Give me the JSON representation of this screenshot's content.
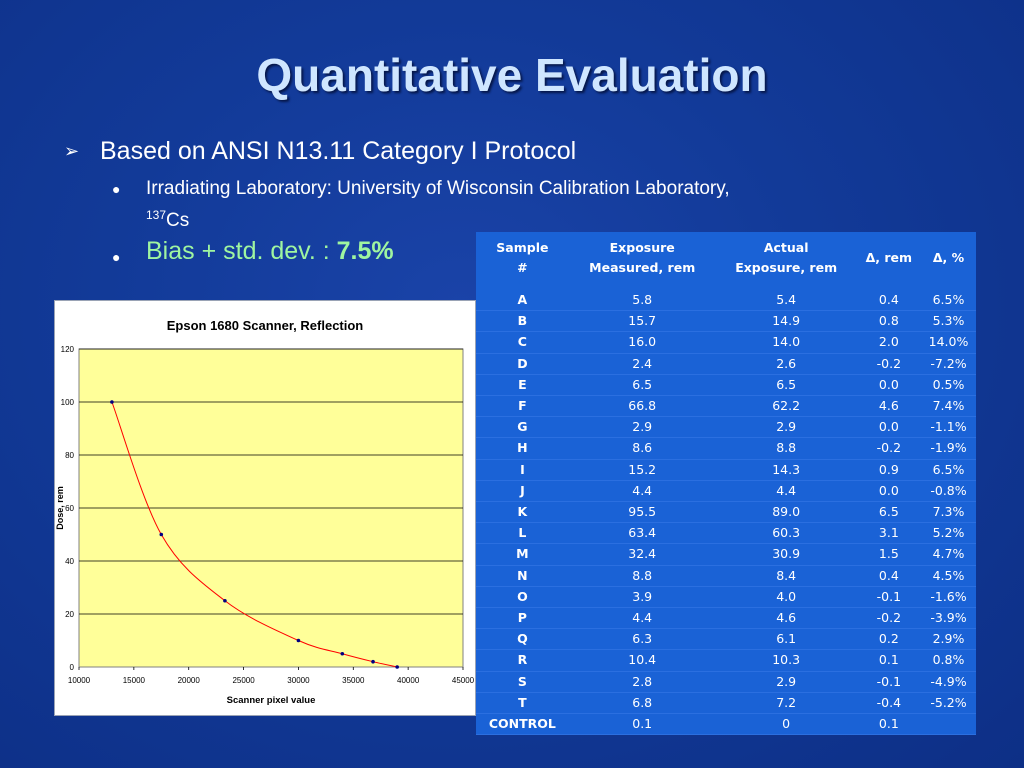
{
  "slide": {
    "title": "Quantitative Evaluation",
    "bullet1": "Based on ANSI N13.11 Category I Protocol",
    "sub1_prefix": "Irradiating Laboratory: University of Wisconsin Calibration Laboratory, ",
    "sub1_sup": "137",
    "sub1_suffix": "Cs",
    "sub2_prefix": "Bias + std. dev. : ",
    "sub2_value": "7.5%",
    "arrow_glyph": "➢",
    "dot_glyph": "●"
  },
  "table": {
    "headers": [
      "Sample #",
      "Exposure Measured, rem",
      "Actual Exposure, rem",
      "Δ, rem",
      "Δ, %"
    ],
    "header_lines": [
      [
        "Sample",
        "#"
      ],
      [
        "Exposure",
        "Measured, rem"
      ],
      [
        "Actual",
        "Exposure, rem"
      ],
      [
        "Δ, rem"
      ],
      [
        "Δ, %"
      ]
    ],
    "rows": [
      [
        "A",
        "5.8",
        "5.4",
        "0.4",
        "6.5%"
      ],
      [
        "B",
        "15.7",
        "14.9",
        "0.8",
        "5.3%"
      ],
      [
        "C",
        "16.0",
        "14.0",
        "2.0",
        "14.0%"
      ],
      [
        "D",
        "2.4",
        "2.6",
        "-0.2",
        "-7.2%"
      ],
      [
        "E",
        "6.5",
        "6.5",
        "0.0",
        "0.5%"
      ],
      [
        "F",
        "66.8",
        "62.2",
        "4.6",
        "7.4%"
      ],
      [
        "G",
        "2.9",
        "2.9",
        "0.0",
        "-1.1%"
      ],
      [
        "H",
        "8.6",
        "8.8",
        "-0.2",
        "-1.9%"
      ],
      [
        "I",
        "15.2",
        "14.3",
        "0.9",
        "6.5%"
      ],
      [
        "J",
        "4.4",
        "4.4",
        "0.0",
        "-0.8%"
      ],
      [
        "K",
        "95.5",
        "89.0",
        "6.5",
        "7.3%"
      ],
      [
        "L",
        "63.4",
        "60.3",
        "3.1",
        "5.2%"
      ],
      [
        "M",
        "32.4",
        "30.9",
        "1.5",
        "4.7%"
      ],
      [
        "N",
        "8.8",
        "8.4",
        "0.4",
        "4.5%"
      ],
      [
        "O",
        "3.9",
        "4.0",
        "-0.1",
        "-1.6%"
      ],
      [
        "P",
        "4.4",
        "4.6",
        "-0.2",
        "-3.9%"
      ],
      [
        "Q",
        "6.3",
        "6.1",
        "0.2",
        "2.9%"
      ],
      [
        "R",
        "10.4",
        "10.3",
        "0.1",
        "0.8%"
      ],
      [
        "S",
        "2.8",
        "2.9",
        "-0.1",
        "-4.9%"
      ],
      [
        "T",
        "6.8",
        "7.2",
        "-0.4",
        "-5.2%"
      ],
      [
        "CONTROL",
        "0.1",
        "0",
        "0.1",
        ""
      ]
    ]
  },
  "chart_data": {
    "type": "scatter",
    "title": "Epson 1680 Scanner, Reflection",
    "xlabel": "Scanner pixel value",
    "ylabel": "Dose, rem",
    "xlim": [
      10000,
      45000
    ],
    "ylim": [
      0,
      120
    ],
    "xticks": [
      10000,
      15000,
      20000,
      25000,
      30000,
      35000,
      40000,
      45000
    ],
    "yticks": [
      0,
      20,
      40,
      60,
      80,
      100,
      120
    ],
    "grid": "horizontal",
    "points": [
      {
        "x": 13000,
        "y": 100
      },
      {
        "x": 17500,
        "y": 50
      },
      {
        "x": 23300,
        "y": 25
      },
      {
        "x": 30000,
        "y": 10
      },
      {
        "x": 34000,
        "y": 5
      },
      {
        "x": 36800,
        "y": 2
      },
      {
        "x": 39000,
        "y": 0
      }
    ],
    "colors": {
      "plot_bg": "#ffff99",
      "curve": "#ff0000",
      "marker": "#000080"
    }
  }
}
